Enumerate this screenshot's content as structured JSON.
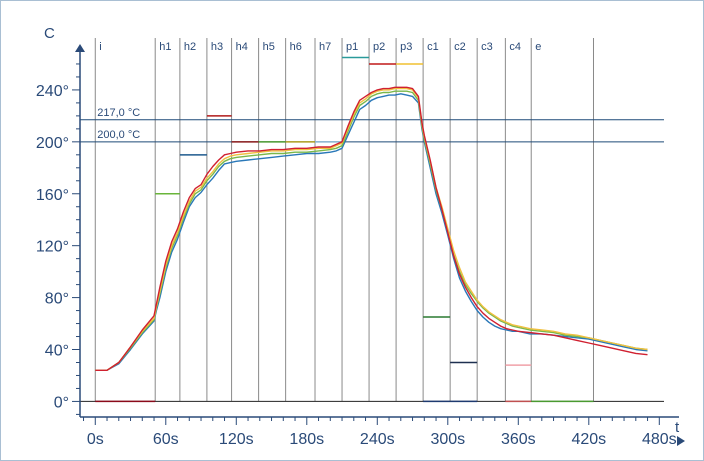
{
  "chart_data": {
    "type": "line",
    "xlabel": "t",
    "ylabel": "C",
    "xlim": [
      -13,
      484
    ],
    "ylim": [
      -12,
      280
    ],
    "x_ticks": [
      {
        "v": 0,
        "label": "0s"
      },
      {
        "v": 60,
        "label": "60s"
      },
      {
        "v": 120,
        "label": "120s"
      },
      {
        "v": 180,
        "label": "180s"
      },
      {
        "v": 240,
        "label": "240s"
      },
      {
        "v": 300,
        "label": "300s"
      },
      {
        "v": 360,
        "label": "360s"
      },
      {
        "v": 420,
        "label": "420s"
      },
      {
        "v": 480,
        "label": "480s"
      }
    ],
    "y_ticks": [
      {
        "v": 0,
        "label": "0°"
      },
      {
        "v": 40,
        "label": "40°"
      },
      {
        "v": 80,
        "label": "80°"
      },
      {
        "v": 120,
        "label": "120°"
      },
      {
        "v": 160,
        "label": "160°"
      },
      {
        "v": 200,
        "label": "200°"
      },
      {
        "v": 240,
        "label": "240°"
      }
    ],
    "zones": [
      {
        "label": "i",
        "start": 0
      },
      {
        "label": "h1",
        "start": 51
      },
      {
        "label": "h2",
        "start": 72
      },
      {
        "label": "h3",
        "start": 95
      },
      {
        "label": "h4",
        "start": 116
      },
      {
        "label": "h5",
        "start": 139
      },
      {
        "label": "h6",
        "start": 162
      },
      {
        "label": "h7",
        "start": 187
      },
      {
        "label": "p1",
        "start": 210
      },
      {
        "label": "p2",
        "start": 233
      },
      {
        "label": "p3",
        "start": 256
      },
      {
        "label": "c1",
        "start": 279
      },
      {
        "label": "c2",
        "start": 302
      },
      {
        "label": "c3",
        "start": 325
      },
      {
        "label": "c4",
        "start": 349
      },
      {
        "label": "e",
        "start": 371
      },
      {
        "label": "",
        "start": 424
      }
    ],
    "reference_lines": [
      {
        "value": 217,
        "label": "217,0 °C"
      },
      {
        "value": 200,
        "label": "200,0 °C"
      }
    ],
    "setpoints": [
      {
        "x": [
          0,
          51
        ],
        "value": 0,
        "color": "#8b0a1a"
      },
      {
        "x": [
          51,
          72
        ],
        "value": 160,
        "color": "#69b53a"
      },
      {
        "x": [
          72,
          95
        ],
        "value": 190,
        "color": "#1e5a8e"
      },
      {
        "x": [
          95,
          116
        ],
        "value": 220,
        "color": "#b01a1a"
      },
      {
        "x": [
          116,
          139
        ],
        "value": 200,
        "color": "#8b1a1a"
      },
      {
        "x": [
          139,
          162
        ],
        "value": 200,
        "color": "#4a9a30"
      },
      {
        "x": [
          162,
          187
        ],
        "value": 200,
        "color": "#b0a020"
      },
      {
        "x": [
          187,
          210
        ],
        "value": 200,
        "color": "#8bb5d0"
      },
      {
        "x": [
          210,
          233
        ],
        "value": 265,
        "color": "#2a9a9a"
      },
      {
        "x": [
          233,
          256
        ],
        "value": 260,
        "color": "#c01818"
      },
      {
        "x": [
          256,
          279
        ],
        "value": 260,
        "color": "#f0c030"
      },
      {
        "x": [
          279,
          302
        ],
        "value": 65,
        "color": "#2a7a30"
      },
      {
        "x": [
          279,
          302
        ],
        "value": 0,
        "color": "#1e3a70"
      },
      {
        "x": [
          302,
          325
        ],
        "value": 30,
        "color": "#1e3050"
      },
      {
        "x": [
          302,
          325
        ],
        "value": 0,
        "color": "#1e3a70"
      },
      {
        "x": [
          349,
          371
        ],
        "value": 28,
        "color": "#f0a0a8"
      },
      {
        "x": [
          349,
          371
        ],
        "value": 0,
        "color": "#c05050"
      },
      {
        "x": [
          371,
          424
        ],
        "value": 0,
        "color": "#4a9a30"
      }
    ],
    "series": [
      {
        "color": "#2a78b8",
        "x": [
          0,
          10,
          20,
          30,
          40,
          50,
          52,
          55,
          60,
          65,
          70,
          75,
          80,
          85,
          90,
          95,
          100,
          105,
          110,
          115,
          120,
          130,
          140,
          150,
          160,
          170,
          180,
          190,
          200,
          205,
          210,
          215,
          220,
          225,
          230,
          235,
          240,
          245,
          250,
          255,
          260,
          265,
          270,
          275,
          278,
          280,
          285,
          290,
          295,
          300,
          305,
          310,
          315,
          320,
          325,
          330,
          335,
          340,
          345,
          350,
          355,
          360,
          370,
          380,
          390,
          400,
          410,
          420,
          430,
          440,
          450,
          460,
          470
        ],
        "y": [
          24,
          24,
          29,
          40,
          52,
          62,
          70,
          80,
          100,
          115,
          125,
          138,
          150,
          157,
          161,
          167,
          172,
          178,
          183,
          184,
          185,
          186,
          187,
          188,
          189,
          190,
          191,
          191,
          192,
          193,
          195,
          205,
          215,
          225,
          228,
          232,
          234,
          235,
          236,
          236,
          237,
          236,
          235,
          230,
          210,
          200,
          180,
          160,
          145,
          128,
          110,
          95,
          85,
          77,
          70,
          65,
          61,
          58,
          56,
          55,
          54,
          54,
          52,
          52,
          51,
          50,
          49,
          48,
          46,
          44,
          42,
          40,
          39
        ]
      },
      {
        "color": "#7ab84a",
        "x": [
          0,
          10,
          20,
          30,
          40,
          50,
          52,
          55,
          60,
          65,
          70,
          75,
          80,
          85,
          90,
          95,
          100,
          105,
          110,
          115,
          120,
          130,
          140,
          150,
          160,
          170,
          180,
          190,
          200,
          205,
          210,
          215,
          220,
          225,
          230,
          235,
          240,
          245,
          250,
          255,
          260,
          265,
          270,
          275,
          278,
          280,
          285,
          290,
          295,
          300,
          305,
          310,
          315,
          320,
          325,
          330,
          335,
          340,
          345,
          350,
          355,
          360,
          370,
          380,
          390,
          400,
          410,
          420,
          430,
          440,
          450,
          460,
          470
        ],
        "y": [
          24,
          24,
          30,
          41,
          53,
          63,
          72,
          83,
          103,
          118,
          128,
          141,
          152,
          160,
          163,
          170,
          175,
          181,
          185,
          187,
          188,
          189,
          190,
          191,
          191,
          192,
          192,
          193,
          194,
          195,
          197,
          208,
          219,
          228,
          231,
          235,
          237,
          238,
          238,
          239,
          239,
          239,
          238,
          232,
          212,
          202,
          183,
          163,
          148,
          131,
          113,
          100,
          90,
          83,
          77,
          72,
          68,
          65,
          62,
          60,
          58,
          57,
          55,
          54,
          53,
          51,
          50,
          49,
          47,
          45,
          43,
          41,
          40
        ]
      },
      {
        "color": "#f0c040",
        "x": [
          0,
          10,
          20,
          30,
          40,
          50,
          52,
          55,
          60,
          65,
          70,
          75,
          80,
          85,
          90,
          95,
          100,
          105,
          110,
          115,
          120,
          130,
          140,
          150,
          160,
          170,
          180,
          190,
          200,
          205,
          210,
          215,
          220,
          225,
          230,
          235,
          240,
          245,
          250,
          255,
          260,
          265,
          270,
          275,
          278,
          280,
          285,
          290,
          295,
          300,
          305,
          310,
          315,
          320,
          325,
          330,
          335,
          340,
          345,
          350,
          355,
          360,
          370,
          380,
          390,
          400,
          410,
          420,
          430,
          440,
          450,
          460,
          470
        ],
        "y": [
          24,
          24,
          30,
          42,
          54,
          64,
          73,
          85,
          105,
          120,
          130,
          143,
          154,
          162,
          165,
          172,
          177,
          183,
          187,
          189,
          190,
          191,
          192,
          193,
          193,
          194,
          194,
          195,
          195,
          197,
          199,
          210,
          221,
          230,
          233,
          237,
          239,
          240,
          240,
          241,
          241,
          241,
          240,
          234,
          214,
          204,
          185,
          165,
          150,
          133,
          116,
          103,
          92,
          85,
          78,
          73,
          69,
          66,
          63,
          61,
          59,
          58,
          56,
          55,
          54,
          52,
          51,
          49,
          47,
          45,
          43,
          41,
          40
        ]
      },
      {
        "color": "#d02030",
        "x": [
          0,
          10,
          20,
          30,
          40,
          50,
          52,
          55,
          60,
          65,
          70,
          75,
          80,
          85,
          90,
          95,
          100,
          105,
          110,
          115,
          120,
          130,
          140,
          150,
          160,
          170,
          180,
          190,
          200,
          205,
          210,
          215,
          220,
          225,
          230,
          235,
          240,
          245,
          250,
          255,
          260,
          265,
          270,
          275,
          278,
          280,
          285,
          290,
          295,
          300,
          305,
          310,
          315,
          320,
          325,
          330,
          335,
          340,
          345,
          350,
          355,
          360,
          370,
          380,
          390,
          400,
          410,
          420,
          430,
          440,
          450,
          460,
          470
        ],
        "y": [
          24,
          24,
          30,
          42,
          55,
          66,
          75,
          88,
          108,
          123,
          133,
          146,
          157,
          164,
          167,
          175,
          181,
          186,
          190,
          191,
          192,
          193,
          193,
          194,
          194,
          195,
          195,
          196,
          196,
          198,
          200,
          212,
          223,
          232,
          235,
          238,
          240,
          241,
          241,
          242,
          242,
          242,
          241,
          235,
          215,
          205,
          186,
          165,
          148,
          130,
          112,
          98,
          88,
          80,
          73,
          68,
          64,
          61,
          58,
          56,
          55,
          54,
          53,
          52,
          51,
          49,
          47,
          45,
          43,
          41,
          39,
          37,
          36
        ]
      }
    ]
  }
}
